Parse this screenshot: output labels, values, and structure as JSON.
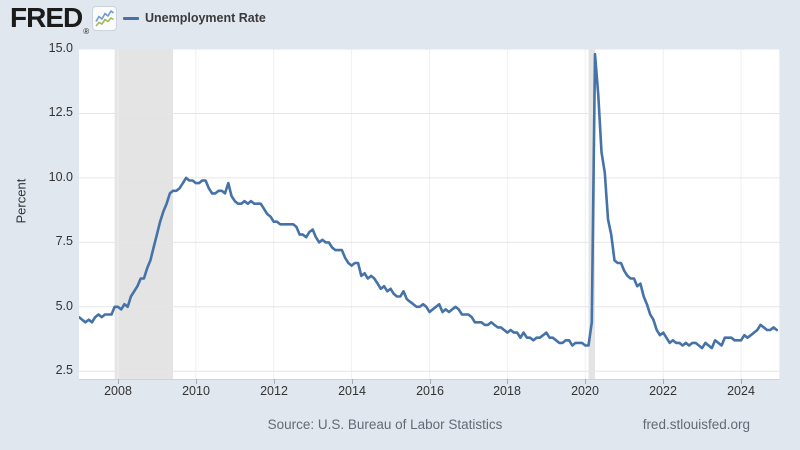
{
  "header": {
    "logo_text": "FRED",
    "registered_mark": "®",
    "legend": {
      "series_label": "Unemployment Rate"
    }
  },
  "footer": {
    "source_text": "Source: U.S. Bureau of Labor Statistics",
    "site_text": "fred.stlouisfed.org"
  },
  "colors": {
    "page_bg": "#e1e7ef",
    "plot_bg": "#ffffff",
    "line": "#4572a7",
    "grid_h": "#e6e6e6",
    "grid_v": "#f0f0f0",
    "recession_band": "#e4e4e4",
    "axis_line": "#cfd3d8",
    "tick_mark": "#a9adb3",
    "tick_text": "#333333",
    "footer_text": "#5f6b76",
    "logo_icon_blue": "#6b9bd2",
    "logo_icon_green": "#a7b757"
  },
  "chart_data": {
    "type": "line",
    "title": "Unemployment Rate",
    "ylabel": "Percent",
    "xlabel": "",
    "frequency": "monthly",
    "start_year": 2007,
    "start_month": 1,
    "end_year": 2024,
    "end_month": 12,
    "x_domain": [
      2007,
      2025
    ],
    "y_domain": [
      2.2,
      15.0
    ],
    "y_ticks": [
      2.5,
      5.0,
      7.5,
      10.0,
      12.5,
      15.0
    ],
    "x_ticks": [
      2008,
      2010,
      2012,
      2014,
      2016,
      2018,
      2020,
      2022,
      2024
    ],
    "grid": true,
    "legend_position": "top-left",
    "series": [
      {
        "name": "Unemployment Rate",
        "color": "#4572a7"
      }
    ],
    "recession_bands": [
      {
        "label": "recession-2007-2009",
        "start": 2007.9167,
        "end": 2009.4167
      },
      {
        "label": "recession-2020",
        "start": 2020.0833,
        "end": 2020.25
      }
    ],
    "values": [
      4.6,
      4.5,
      4.4,
      4.5,
      4.4,
      4.6,
      4.7,
      4.6,
      4.7,
      4.7,
      4.7,
      5.0,
      5.0,
      4.9,
      5.1,
      5.0,
      5.4,
      5.6,
      5.8,
      6.1,
      6.1,
      6.5,
      6.8,
      7.3,
      7.8,
      8.3,
      8.7,
      9.0,
      9.4,
      9.5,
      9.5,
      9.6,
      9.8,
      10.0,
      9.9,
      9.9,
      9.8,
      9.8,
      9.9,
      9.9,
      9.6,
      9.4,
      9.4,
      9.5,
      9.5,
      9.4,
      9.8,
      9.3,
      9.1,
      9.0,
      9.0,
      9.1,
      9.0,
      9.1,
      9.0,
      9.0,
      9.0,
      8.8,
      8.6,
      8.5,
      8.3,
      8.3,
      8.2,
      8.2,
      8.2,
      8.2,
      8.2,
      8.1,
      7.8,
      7.8,
      7.7,
      7.9,
      8.0,
      7.7,
      7.5,
      7.6,
      7.5,
      7.5,
      7.3,
      7.2,
      7.2,
      7.2,
      6.9,
      6.7,
      6.6,
      6.7,
      6.7,
      6.2,
      6.3,
      6.1,
      6.2,
      6.1,
      5.9,
      5.7,
      5.8,
      5.6,
      5.7,
      5.5,
      5.4,
      5.4,
      5.6,
      5.3,
      5.2,
      5.1,
      5.0,
      5.0,
      5.1,
      5.0,
      4.8,
      4.9,
      5.0,
      5.1,
      4.8,
      4.9,
      4.8,
      4.9,
      5.0,
      4.9,
      4.7,
      4.7,
      4.7,
      4.6,
      4.4,
      4.4,
      4.4,
      4.3,
      4.3,
      4.4,
      4.3,
      4.2,
      4.2,
      4.1,
      4.0,
      4.1,
      4.0,
      4.0,
      3.8,
      4.0,
      3.8,
      3.8,
      3.7,
      3.8,
      3.8,
      3.9,
      4.0,
      3.8,
      3.8,
      3.7,
      3.6,
      3.6,
      3.7,
      3.7,
      3.5,
      3.6,
      3.6,
      3.6,
      3.5,
      3.5,
      4.4,
      14.8,
      13.2,
      11.0,
      10.2,
      8.4,
      7.8,
      6.8,
      6.7,
      6.7,
      6.4,
      6.2,
      6.1,
      6.1,
      5.8,
      5.9,
      5.4,
      5.1,
      4.7,
      4.5,
      4.1,
      3.9,
      4.0,
      3.8,
      3.6,
      3.7,
      3.6,
      3.6,
      3.5,
      3.6,
      3.5,
      3.6,
      3.6,
      3.5,
      3.4,
      3.6,
      3.5,
      3.4,
      3.7,
      3.6,
      3.5,
      3.8,
      3.8,
      3.8,
      3.7,
      3.7,
      3.7,
      3.9,
      3.8,
      3.9,
      4.0,
      4.1,
      4.3,
      4.2,
      4.1,
      4.1,
      4.2,
      4.1
    ]
  }
}
